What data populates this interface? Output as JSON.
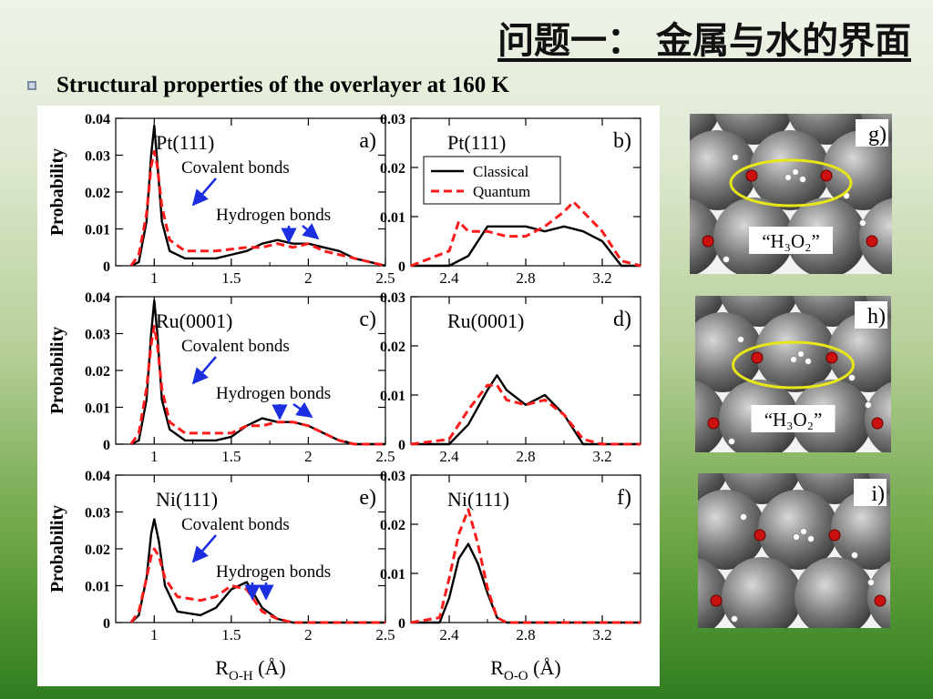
{
  "slide": {
    "title": "问题一： 金属与水的界面",
    "bullet": "Structural properties of the overlayer at 160 K"
  },
  "labels": {
    "covalent": "Covalent bonds",
    "hydrogen": "Hydrogen bonds",
    "h3o2": "“H₃O₂”",
    "xlabel_left": "R",
    "xlabel_left_sub": "O-H",
    "xlabel_right": "R",
    "xlabel_right_sub": "O-O",
    "xunit": "(Å)",
    "legend_classical": "Classical",
    "legend_quantum": "Quantum"
  },
  "colors": {
    "classical": "#000000",
    "quantum": "#ff1a1a",
    "arrow": "#1b2ee0",
    "ellipse": "#e6e619",
    "oxygen": "#cc1111"
  },
  "chart_data": [
    {
      "id": "a",
      "type": "line",
      "surface": "Pt(111)",
      "panel": "a)",
      "ylabel": "Probability",
      "xlim": [
        0.75,
        2.5
      ],
      "ylim": [
        0,
        0.04
      ],
      "xticks": [
        "1",
        "1.5",
        "2",
        "2.5"
      ],
      "yticks": [
        "0",
        "0.01",
        "0.02",
        "0.03",
        "0.04"
      ],
      "series": [
        {
          "name": "Classical",
          "x": [
            0.85,
            0.9,
            0.95,
            0.98,
            1.0,
            1.02,
            1.05,
            1.1,
            1.2,
            1.4,
            1.6,
            1.7,
            1.8,
            1.9,
            2.0,
            2.1,
            2.2,
            2.3,
            2.4,
            2.5
          ],
          "y": [
            0,
            0.001,
            0.012,
            0.03,
            0.038,
            0.028,
            0.012,
            0.004,
            0.002,
            0.002,
            0.004,
            0.006,
            0.007,
            0.006,
            0.006,
            0.005,
            0.004,
            0.002,
            0.001,
            0
          ]
        },
        {
          "name": "Quantum",
          "x": [
            0.85,
            0.9,
            0.95,
            0.98,
            1.0,
            1.02,
            1.05,
            1.1,
            1.2,
            1.4,
            1.6,
            1.7,
            1.8,
            1.9,
            2.0,
            2.1,
            2.2,
            2.3,
            2.4,
            2.5
          ],
          "y": [
            0,
            0.003,
            0.014,
            0.027,
            0.031,
            0.027,
            0.016,
            0.007,
            0.004,
            0.004,
            0.005,
            0.005,
            0.006,
            0.005,
            0.006,
            0.004,
            0.003,
            0.002,
            0.001,
            0
          ]
        }
      ]
    },
    {
      "id": "b",
      "type": "line",
      "surface": "Pt(111)",
      "panel": "b)",
      "xlim": [
        2.2,
        3.4
      ],
      "ylim": [
        0,
        0.03
      ],
      "xticks": [
        "2.4",
        "2.8",
        "3.2"
      ],
      "yticks": [
        "0",
        "0.01",
        "0.02",
        "0.03"
      ],
      "legend": "top-left",
      "series": [
        {
          "name": "Classical",
          "x": [
            2.2,
            2.4,
            2.5,
            2.6,
            2.7,
            2.8,
            2.9,
            3.0,
            3.1,
            3.2,
            3.3,
            3.4
          ],
          "y": [
            0,
            0.0,
            0.002,
            0.008,
            0.008,
            0.008,
            0.007,
            0.008,
            0.007,
            0.005,
            0.0,
            0
          ]
        },
        {
          "name": "Quantum",
          "x": [
            2.2,
            2.4,
            2.45,
            2.5,
            2.6,
            2.7,
            2.8,
            2.9,
            3.0,
            3.05,
            3.1,
            3.2,
            3.3,
            3.4
          ],
          "y": [
            0,
            0.003,
            0.009,
            0.007,
            0.007,
            0.006,
            0.006,
            0.008,
            0.011,
            0.013,
            0.011,
            0.007,
            0.001,
            0
          ]
        }
      ]
    },
    {
      "id": "c",
      "type": "line",
      "surface": "Ru(0001)",
      "panel": "c)",
      "ylabel": "Probability",
      "xlim": [
        0.75,
        2.5
      ],
      "ylim": [
        0,
        0.04
      ],
      "xticks": [
        "1",
        "1.5",
        "2",
        "2.5"
      ],
      "yticks": [
        "0",
        "0.01",
        "0.02",
        "0.03",
        "0.04"
      ],
      "series": [
        {
          "name": "Classical",
          "x": [
            0.85,
            0.9,
            0.95,
            0.98,
            1.0,
            1.02,
            1.05,
            1.1,
            1.2,
            1.4,
            1.5,
            1.6,
            1.7,
            1.8,
            1.9,
            2.0,
            2.1,
            2.2,
            2.3,
            2.5
          ],
          "y": [
            0,
            0.001,
            0.012,
            0.03,
            0.039,
            0.03,
            0.012,
            0.004,
            0.001,
            0.001,
            0.002,
            0.005,
            0.007,
            0.006,
            0.006,
            0.005,
            0.003,
            0.001,
            0,
            0
          ]
        },
        {
          "name": "Quantum",
          "x": [
            0.85,
            0.9,
            0.95,
            0.98,
            1.0,
            1.02,
            1.05,
            1.1,
            1.2,
            1.4,
            1.5,
            1.6,
            1.7,
            1.8,
            1.9,
            2.0,
            2.1,
            2.2,
            2.3,
            2.5
          ],
          "y": [
            0,
            0.003,
            0.015,
            0.027,
            0.032,
            0.027,
            0.015,
            0.006,
            0.003,
            0.003,
            0.003,
            0.005,
            0.005,
            0.006,
            0.006,
            0.005,
            0.003,
            0.001,
            0,
            0
          ]
        }
      ]
    },
    {
      "id": "d",
      "type": "line",
      "surface": "Ru(0001)",
      "panel": "d)",
      "xlim": [
        2.2,
        3.4
      ],
      "ylim": [
        0,
        0.03
      ],
      "xticks": [
        "2.4",
        "2.8",
        "3.2"
      ],
      "yticks": [
        "0",
        "0.01",
        "0.02",
        "0.03"
      ],
      "series": [
        {
          "name": "Classical",
          "x": [
            2.2,
            2.4,
            2.5,
            2.6,
            2.65,
            2.7,
            2.8,
            2.9,
            3.0,
            3.1,
            3.2,
            3.4
          ],
          "y": [
            0,
            0.0,
            0.004,
            0.011,
            0.014,
            0.011,
            0.008,
            0.01,
            0.006,
            0.0,
            0,
            0
          ]
        },
        {
          "name": "Quantum",
          "x": [
            2.2,
            2.4,
            2.5,
            2.6,
            2.65,
            2.7,
            2.8,
            2.9,
            3.0,
            3.1,
            3.2,
            3.4
          ],
          "y": [
            0,
            0.001,
            0.007,
            0.012,
            0.012,
            0.009,
            0.008,
            0.009,
            0.006,
            0.001,
            0,
            0
          ]
        }
      ]
    },
    {
      "id": "e",
      "type": "line",
      "surface": "Ni(111)",
      "panel": "e)",
      "ylabel": "Probability",
      "xlim": [
        0.75,
        2.5
      ],
      "ylim": [
        0,
        0.04
      ],
      "xticks": [
        "1",
        "1.5",
        "2",
        "2.5"
      ],
      "yticks": [
        "0",
        "0.01",
        "0.02",
        "0.03",
        "0.04"
      ],
      "series": [
        {
          "name": "Classical",
          "x": [
            0.85,
            0.9,
            0.95,
            0.98,
            1.0,
            1.03,
            1.07,
            1.15,
            1.3,
            1.4,
            1.5,
            1.6,
            1.7,
            1.8,
            1.9,
            2.0,
            2.5
          ],
          "y": [
            0,
            0.002,
            0.012,
            0.024,
            0.028,
            0.022,
            0.01,
            0.003,
            0.002,
            0.004,
            0.009,
            0.011,
            0.004,
            0.001,
            0,
            0,
            0
          ]
        },
        {
          "name": "Quantum",
          "x": [
            0.85,
            0.9,
            0.95,
            0.98,
            1.0,
            1.03,
            1.07,
            1.15,
            1.3,
            1.4,
            1.5,
            1.6,
            1.7,
            1.8,
            1.9,
            2.0,
            2.5
          ],
          "y": [
            0,
            0.003,
            0.012,
            0.018,
            0.02,
            0.018,
            0.012,
            0.007,
            0.006,
            0.007,
            0.01,
            0.009,
            0.003,
            0.001,
            0,
            0,
            0
          ]
        }
      ]
    },
    {
      "id": "f",
      "type": "line",
      "surface": "Ni(111)",
      "panel": "f)",
      "xlim": [
        2.2,
        3.4
      ],
      "ylim": [
        0,
        0.03
      ],
      "xticks": [
        "2.4",
        "2.8",
        "3.2"
      ],
      "yticks": [
        "0",
        "0.01",
        "0.02",
        "0.03"
      ],
      "series": [
        {
          "name": "Classical",
          "x": [
            2.2,
            2.35,
            2.4,
            2.45,
            2.5,
            2.55,
            2.6,
            2.65,
            2.7,
            3.4
          ],
          "y": [
            0,
            0.0,
            0.005,
            0.013,
            0.016,
            0.012,
            0.006,
            0.001,
            0,
            0
          ]
        },
        {
          "name": "Quantum",
          "x": [
            2.2,
            2.35,
            2.4,
            2.45,
            2.5,
            2.55,
            2.6,
            2.65,
            2.7,
            3.4
          ],
          "y": [
            0,
            0.001,
            0.009,
            0.018,
            0.023,
            0.016,
            0.007,
            0.001,
            0,
            0
          ]
        }
      ]
    }
  ],
  "snapshots": [
    {
      "id": "g",
      "panel": "g)",
      "annotation": "“H₃O₂”"
    },
    {
      "id": "h",
      "panel": "h)",
      "annotation": "“H₃O₂”"
    },
    {
      "id": "i",
      "panel": "i)"
    }
  ]
}
